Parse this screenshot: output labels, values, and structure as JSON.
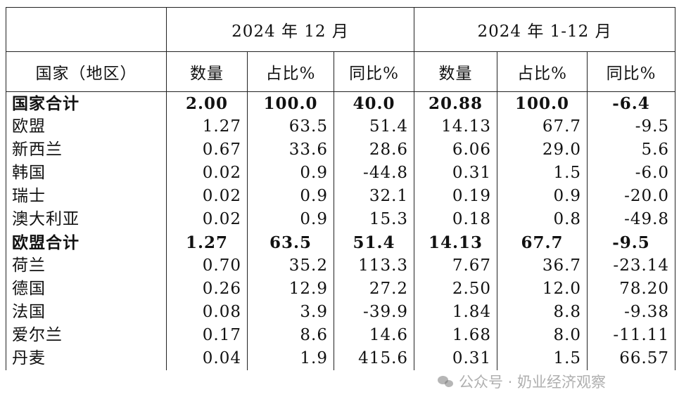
{
  "table": {
    "group_headers": [
      "2024 年 12 月",
      "2024 年 1-12 月"
    ],
    "column_headers": [
      "国家（地区）",
      "数量",
      "占比%",
      "同比%",
      "数量",
      "占比%",
      "同比%"
    ],
    "rows": [
      {
        "cells": [
          "国家合计",
          "2.00",
          "100.0",
          "40.0",
          "20.88",
          "100.0",
          "-6.4"
        ],
        "total": true
      },
      {
        "cells": [
          "欧盟",
          "1.27",
          "63.5",
          "51.4",
          "14.13",
          "67.7",
          "-9.5"
        ],
        "total": false
      },
      {
        "cells": [
          "新西兰",
          "0.67",
          "33.6",
          "28.6",
          "6.06",
          "29.0",
          "5.6"
        ],
        "total": false
      },
      {
        "cells": [
          "韩国",
          "0.02",
          "0.9",
          "-44.8",
          "0.31",
          "1.5",
          "-6.0"
        ],
        "total": false
      },
      {
        "cells": [
          "瑞士",
          "0.02",
          "0.9",
          "32.1",
          "0.19",
          "0.9",
          "-20.0"
        ],
        "total": false
      },
      {
        "cells": [
          "澳大利亚",
          "0.02",
          "0.9",
          "15.3",
          "0.18",
          "0.8",
          "-49.8"
        ],
        "total": false
      },
      {
        "cells": [
          "欧盟合计",
          "1.27",
          "63.5",
          "51.4",
          "14.13",
          "67.7",
          "-9.5"
        ],
        "total": true
      },
      {
        "cells": [
          "荷兰",
          "0.70",
          "35.2",
          "113.3",
          "7.67",
          "36.7",
          "-23.14"
        ],
        "total": false
      },
      {
        "cells": [
          "德国",
          "0.26",
          "12.9",
          "27.2",
          "2.50",
          "12.0",
          "78.20"
        ],
        "total": false
      },
      {
        "cells": [
          "法国",
          "0.08",
          "3.9",
          "-39.9",
          "1.84",
          "8.8",
          "-9.38"
        ],
        "total": false
      },
      {
        "cells": [
          "爱尔兰",
          "0.17",
          "8.6",
          "14.6",
          "1.68",
          "8.0",
          "-11.11"
        ],
        "total": false
      },
      {
        "cells": [
          "丹麦",
          "0.04",
          "1.9",
          "415.6",
          "0.31",
          "1.5",
          "66.57"
        ],
        "total": false
      }
    ]
  },
  "watermark": {
    "text": "公众号 · 奶业经济观察",
    "icon": "wechat-icon"
  }
}
